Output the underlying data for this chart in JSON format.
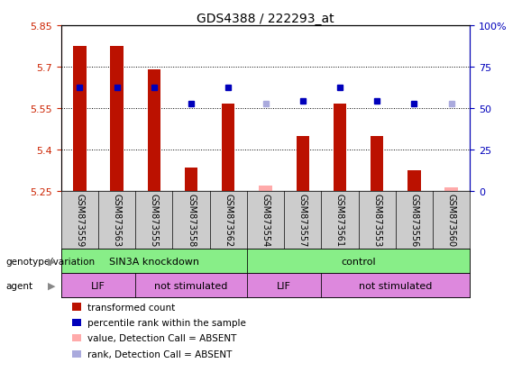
{
  "title": "GDS4388 / 222293_at",
  "samples": [
    "GSM873559",
    "GSM873563",
    "GSM873555",
    "GSM873558",
    "GSM873562",
    "GSM873554",
    "GSM873557",
    "GSM873561",
    "GSM873553",
    "GSM873556",
    "GSM873560"
  ],
  "bar_values": [
    5.775,
    5.775,
    5.69,
    5.335,
    5.565,
    null,
    5.45,
    5.565,
    5.45,
    5.325,
    null
  ],
  "bar_absent": [
    null,
    null,
    null,
    null,
    null,
    5.27,
    null,
    null,
    null,
    null,
    5.265
  ],
  "rank_values": [
    5.625,
    5.625,
    5.625,
    5.565,
    5.625,
    null,
    5.575,
    5.625,
    5.575,
    5.565,
    null
  ],
  "rank_absent": [
    null,
    null,
    null,
    null,
    null,
    5.565,
    null,
    null,
    null,
    null,
    5.565
  ],
  "ylim_left": [
    5.25,
    5.85
  ],
  "yticks_left": [
    5.25,
    5.4,
    5.55,
    5.7,
    5.85
  ],
  "ylim_right": [
    0,
    100
  ],
  "yticks_right": [
    0,
    25,
    50,
    75,
    100
  ],
  "ytick_labels_right": [
    "0",
    "25",
    "50",
    "75",
    "100%"
  ],
  "bar_color": "#bb1100",
  "bar_absent_color": "#ffaaaa",
  "rank_color": "#0000bb",
  "rank_absent_color": "#aaaadd",
  "bar_width": 0.35,
  "rank_marker_size": 5,
  "bg_color": "#ffffff",
  "left_tick_color": "#cc2200",
  "right_tick_color": "#0000bb",
  "sample_bg_color": "#cccccc",
  "geno_color": "#88ee88",
  "agent_color": "#dd88dd",
  "genotype_label": "genotype/variation",
  "agent_label": "agent",
  "sin3a_label": "SIN3A knockdown",
  "control_label": "control",
  "lif_label": "LIF",
  "not_stim_label": "not stimulated",
  "legend_items": [
    {
      "label": "transformed count",
      "color": "#bb1100"
    },
    {
      "label": "percentile rank within the sample",
      "color": "#0000bb"
    },
    {
      "label": "value, Detection Call = ABSENT",
      "color": "#ffaaaa"
    },
    {
      "label": "rank, Detection Call = ABSENT",
      "color": "#aaaadd"
    }
  ]
}
